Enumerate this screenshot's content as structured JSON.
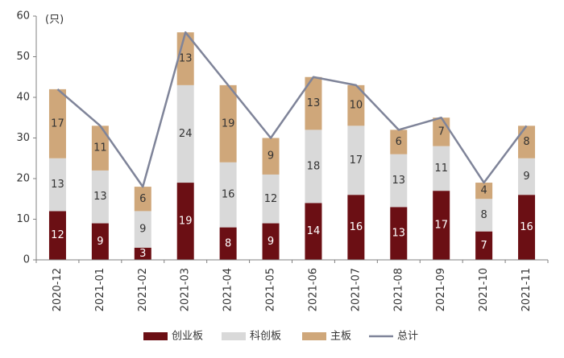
{
  "chart_data": {
    "type": "bar",
    "stacked": true,
    "unit_label": "(只)",
    "categories": [
      "2020-12",
      "2021-01",
      "2021-02",
      "2021-03",
      "2021-04",
      "2021-05",
      "2021-06",
      "2021-07",
      "2021-08",
      "2021-09",
      "2021-10",
      "2021-11"
    ],
    "series": [
      {
        "name": "创业板",
        "type": "bar",
        "color": "#6B0F14",
        "label_color": "#ffffff",
        "values": [
          12,
          9,
          3,
          19,
          8,
          9,
          14,
          16,
          13,
          17,
          7,
          16
        ]
      },
      {
        "name": "科创板",
        "type": "bar",
        "color": "#D9D9D9",
        "label_color": "#333333",
        "values": [
          13,
          13,
          9,
          24,
          16,
          12,
          18,
          17,
          13,
          11,
          8,
          9
        ]
      },
      {
        "name": "主板",
        "type": "bar",
        "color": "#CFA77A",
        "label_color": "#333333",
        "values": [
          17,
          11,
          6,
          13,
          19,
          9,
          13,
          10,
          6,
          7,
          4,
          8
        ]
      },
      {
        "name": "总计",
        "type": "line",
        "color": "#7F8499",
        "values": [
          42,
          33,
          18,
          56,
          43,
          30,
          45,
          43,
          32,
          35,
          19,
          33
        ]
      }
    ],
    "yticks": [
      "0",
      "10",
      "20",
      "30",
      "40",
      "50",
      "60"
    ],
    "ylim": [
      0,
      60
    ],
    "legend_position": "bottom",
    "grid": false
  }
}
